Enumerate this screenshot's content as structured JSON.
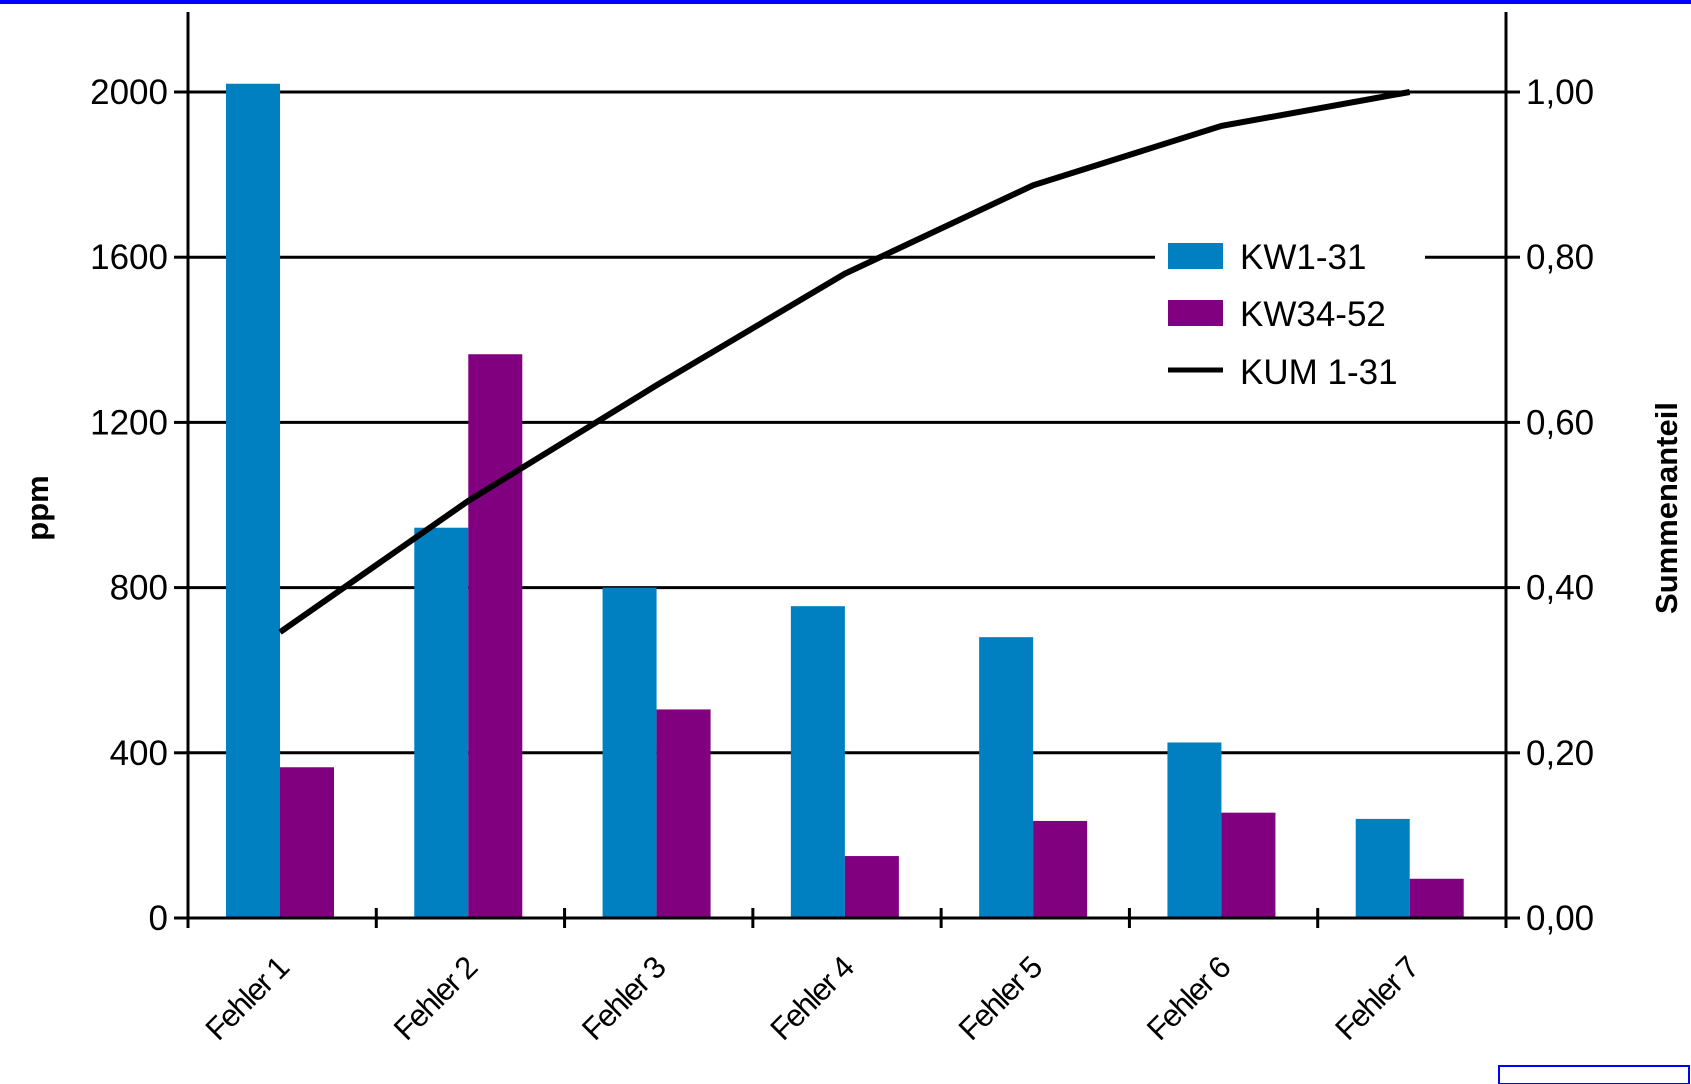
{
  "colors": {
    "series_1": "#0080c0",
    "series_2": "#800080",
    "cumulative_line": "#000000",
    "top_border": "#0000ff",
    "corner_box": "#0000ff"
  },
  "chart_data": {
    "type": "bar",
    "title": "",
    "xlabel": "",
    "ylabel": "ppm",
    "y2label": "Summenanteil",
    "categories": [
      "Fehler 1",
      "Fehler 2",
      "Fehler 3",
      "Fehler 4",
      "Fehler 5",
      "Fehler 6",
      "Fehler 7"
    ],
    "ylim": [
      0,
      2000
    ],
    "yticks": [
      0,
      400,
      800,
      1200,
      1600,
      2000
    ],
    "ytick_labels": [
      "0",
      "400",
      "800",
      "1200",
      "1600",
      "2000"
    ],
    "y2lim": [
      0,
      1
    ],
    "y2ticks": [
      0,
      0.2,
      0.4,
      0.6,
      0.8,
      1.0
    ],
    "y2tick_labels": [
      "0,00",
      "0,20",
      "0,40",
      "0,60",
      "0,80",
      "1,00"
    ],
    "grid": true,
    "legend_position": "right",
    "series": [
      {
        "name": "KW1-31",
        "kind": "bar",
        "axis": "left",
        "values": [
          2020,
          945,
          800,
          755,
          680,
          425,
          240
        ]
      },
      {
        "name": "KW34-52",
        "kind": "bar",
        "axis": "left",
        "values": [
          365,
          1365,
          505,
          150,
          235,
          255,
          95
        ]
      },
      {
        "name": "KUM 1-31",
        "kind": "line",
        "axis": "right",
        "values": [
          0.346,
          0.505,
          0.645,
          0.78,
          0.887,
          0.959,
          1.0
        ]
      }
    ]
  }
}
